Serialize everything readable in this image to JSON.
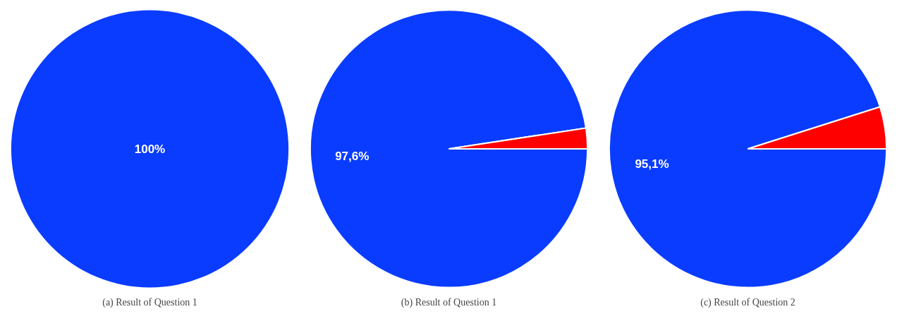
{
  "chart_data": [
    {
      "type": "pie",
      "title": "(a) Result of Question 1",
      "categories": [
        null
      ],
      "values": [
        100
      ],
      "colors": [
        "#0a3cff"
      ],
      "value_labels": [
        "100%"
      ]
    },
    {
      "type": "pie",
      "title": "(b) Result of Question 1",
      "categories": [
        null,
        null
      ],
      "values": [
        97.6,
        2.4
      ],
      "colors": [
        "#0a3cff",
        "#ff0000"
      ],
      "value_labels": [
        "97,6%",
        null
      ]
    },
    {
      "type": "pie",
      "title": "(c) Result of Question 2",
      "categories": [
        null,
        null
      ],
      "values": [
        95.1,
        4.9
      ],
      "colors": [
        "#0a3cff",
        "#ff0000"
      ],
      "value_labels": [
        "95,1%",
        null
      ]
    }
  ]
}
